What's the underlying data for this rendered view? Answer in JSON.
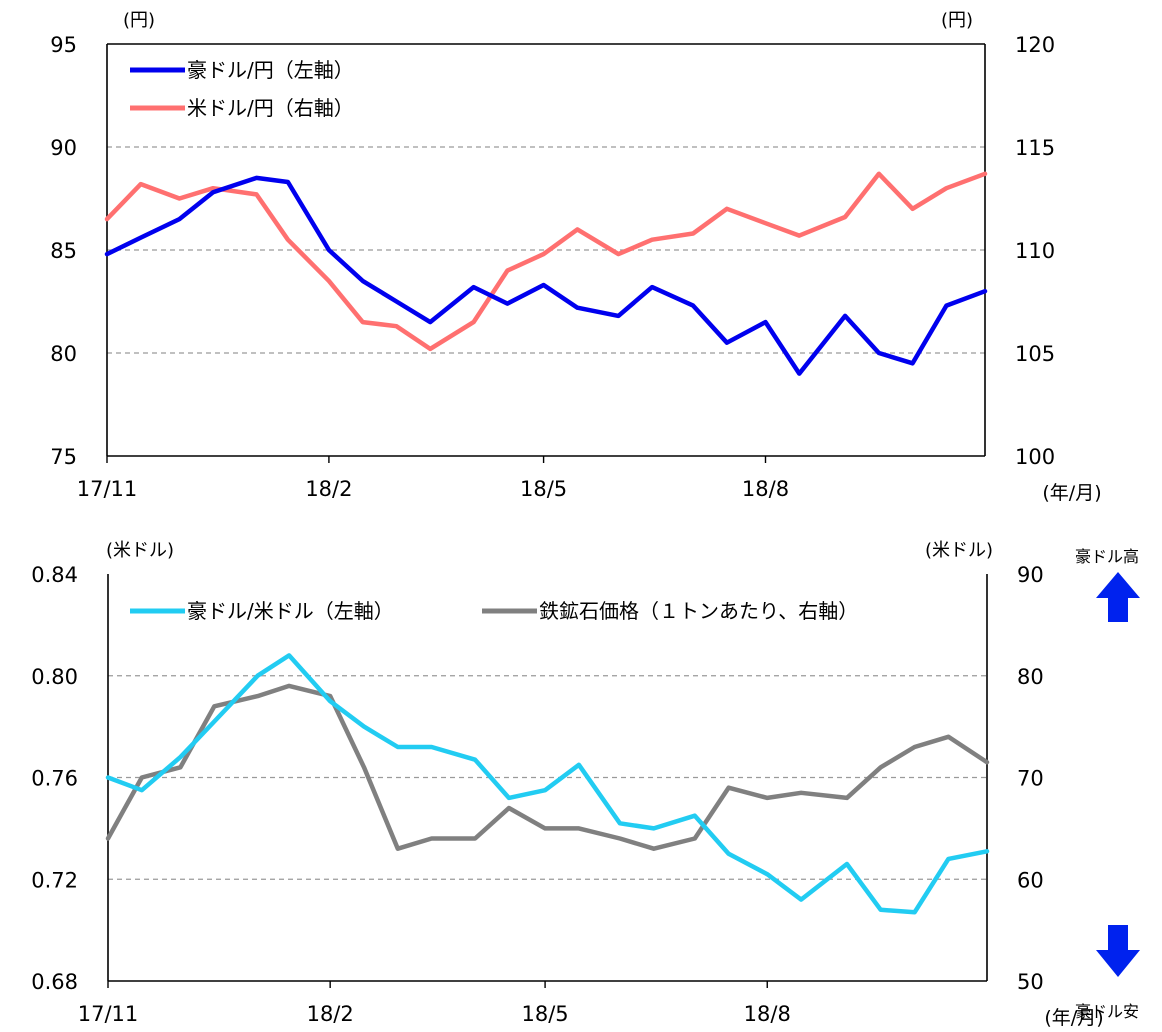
{
  "chart_data": [
    {
      "type": "line",
      "x_axis_unit": "(年/月)",
      "x_ticks": [
        "17/11",
        "18/2",
        "18/5",
        "18/8"
      ],
      "y_left": {
        "unit": "(円)",
        "range": [
          75,
          95
        ],
        "ticks": [
          95,
          90,
          85,
          80,
          75
        ]
      },
      "y_right": {
        "unit": "(円)",
        "range": [
          100,
          120
        ],
        "ticks": [
          120,
          115,
          110,
          105,
          100
        ]
      },
      "grid": "horizontal dashed",
      "legend_position": "top-left",
      "x_dates": [
        "2017-11-01",
        "2017-11-15",
        "2017-12-01",
        "2017-12-15",
        "2018-01-02",
        "2018-01-15",
        "2018-02-01",
        "2018-02-15",
        "2018-03-01",
        "2018-03-15",
        "2018-04-02",
        "2018-04-16",
        "2018-05-01",
        "2018-05-15",
        "2018-06-01",
        "2018-06-15",
        "2018-07-02",
        "2018-07-16",
        "2018-08-01",
        "2018-08-15",
        "2018-09-03",
        "2018-09-17",
        "2018-10-01",
        "2018-10-15",
        "2018-10-31"
      ],
      "series": [
        {
          "name": "豪ドル/円（左軸）",
          "axis": "left",
          "color": "#0000ee",
          "values": [
            84.8,
            85.6,
            86.5,
            87.8,
            88.5,
            88.3,
            85.0,
            83.5,
            82.5,
            81.5,
            83.2,
            82.4,
            83.3,
            82.2,
            81.8,
            83.2,
            82.3,
            80.5,
            81.5,
            79.0,
            81.8,
            80.0,
            79.5,
            82.3,
            83.0
          ]
        },
        {
          "name": "米ドル/円（右軸）",
          "axis": "right",
          "color": "#ff7070",
          "values": [
            111.5,
            113.2,
            112.5,
            113.0,
            112.7,
            110.5,
            108.5,
            106.5,
            106.3,
            105.2,
            106.5,
            109.0,
            109.8,
            111.0,
            109.8,
            110.5,
            110.8,
            112.0,
            111.3,
            110.7,
            111.6,
            113.7,
            112.0,
            113.0,
            113.7
          ]
        }
      ]
    },
    {
      "type": "line",
      "x_axis_unit": "(年/月)",
      "x_ticks": [
        "17/11",
        "18/2",
        "18/5",
        "18/8"
      ],
      "y_left": {
        "unit": "(米ドル)",
        "range": [
          0.68,
          0.84
        ],
        "ticks": [
          "0.84",
          "0.80",
          "0.76",
          "0.72",
          "0.68"
        ]
      },
      "y_right": {
        "unit": "(米ドル)",
        "range": [
          50,
          90
        ],
        "ticks": [
          90,
          80,
          70,
          60,
          50
        ]
      },
      "grid": "horizontal dashed",
      "legend_position": "top",
      "x_dates": [
        "2017-11-01",
        "2017-11-15",
        "2017-12-01",
        "2017-12-15",
        "2018-01-02",
        "2018-01-15",
        "2018-02-01",
        "2018-02-15",
        "2018-03-01",
        "2018-03-15",
        "2018-04-02",
        "2018-04-16",
        "2018-05-01",
        "2018-05-15",
        "2018-06-01",
        "2018-06-15",
        "2018-07-02",
        "2018-07-16",
        "2018-08-01",
        "2018-08-15",
        "2018-09-03",
        "2018-09-17",
        "2018-10-01",
        "2018-10-15",
        "2018-10-31"
      ],
      "series": [
        {
          "name": "豪ドル/米ドル（左軸）",
          "axis": "left",
          "color": "#22ccf2",
          "values": [
            0.76,
            0.755,
            0.768,
            0.782,
            0.8,
            0.808,
            0.79,
            0.78,
            0.772,
            0.772,
            0.767,
            0.752,
            0.755,
            0.765,
            0.742,
            0.74,
            0.745,
            0.73,
            0.722,
            0.712,
            0.726,
            0.708,
            0.707,
            0.728,
            0.731
          ]
        },
        {
          "name": "鉄鉱石価格（１トンあたり、右軸）",
          "axis": "right",
          "color": "#808080",
          "values": [
            64,
            70,
            71,
            77,
            78,
            79,
            78,
            71,
            63,
            64,
            64,
            67,
            65,
            65,
            64,
            63,
            64,
            69,
            68,
            68.5,
            68,
            71,
            73,
            74,
            71.5
          ]
        }
      ]
    }
  ],
  "side_notes": {
    "up_label": "豪ドル高",
    "down_label": "豪ドル安",
    "arrow_color": "#0022ee"
  }
}
